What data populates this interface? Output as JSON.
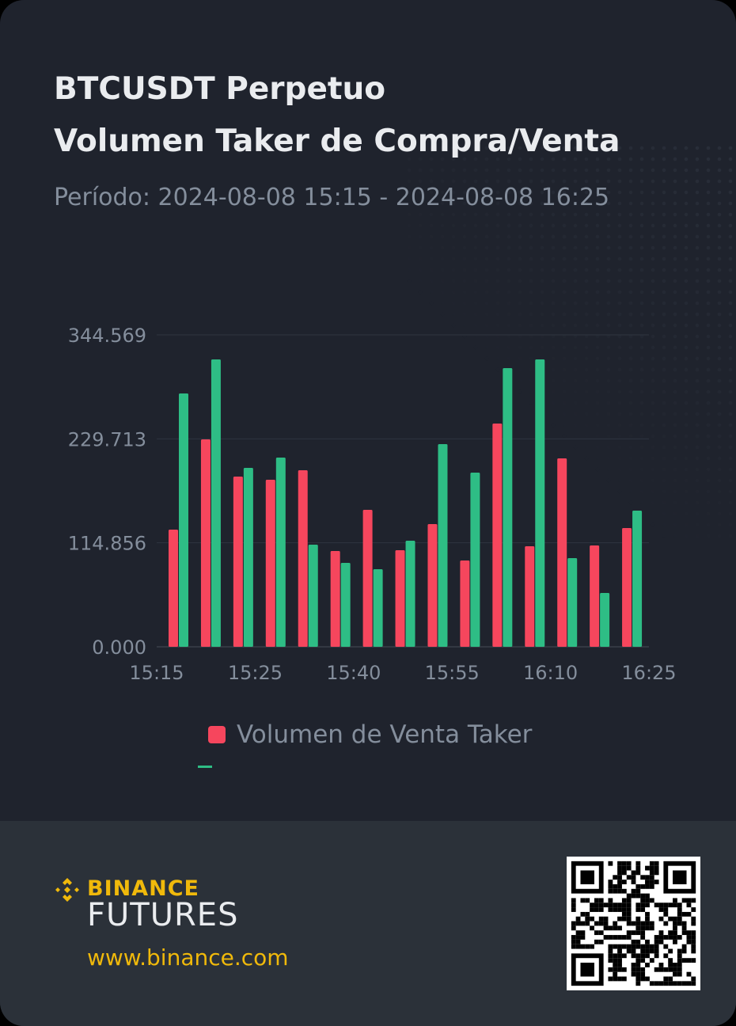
{
  "header": {
    "title_line1": "BTCUSDT Perpetuo",
    "title_line2": "Volumen Taker de Compra/Venta",
    "period": "Período: 2024-08-08 15:15 - 2024-08-08 16:25"
  },
  "chart_data": {
    "type": "bar",
    "categories": [
      "15:15",
      "15:20",
      "15:25",
      "15:30",
      "15:35",
      "15:40",
      "15:45",
      "15:50",
      "15:55",
      "16:00",
      "16:05",
      "16:10",
      "16:15",
      "16:20",
      "16:25"
    ],
    "x_tick_labels": [
      "15:15",
      "15:25",
      "15:40",
      "15:55",
      "16:10",
      "16:25"
    ],
    "y_tick_labels": [
      "0.000",
      "114.856",
      "229.713",
      "344.569"
    ],
    "ylim": [
      0,
      344.569
    ],
    "grid": true,
    "legend_position": "bottom",
    "series": [
      {
        "name": "Volumen de Venta Taker",
        "color": "#f6465d",
        "values": [
          129.4,
          229.1,
          188.0,
          184.5,
          195.0,
          105.8,
          151.3,
          106.7,
          135.6,
          95.3,
          246.6,
          111.1,
          208.1,
          111.9,
          131.2
        ]
      },
      {
        "color": "#2ebd85",
        "values": [
          279.9,
          317.5,
          197.6,
          209.0,
          112.8,
          92.7,
          85.7,
          117.2,
          223.9,
          192.4,
          307.8,
          317.5,
          97.9,
          59.5,
          150.4
        ]
      }
    ]
  },
  "footer": {
    "brand": "BINANCE",
    "product": "FUTURES",
    "url": "www.binance.com"
  }
}
